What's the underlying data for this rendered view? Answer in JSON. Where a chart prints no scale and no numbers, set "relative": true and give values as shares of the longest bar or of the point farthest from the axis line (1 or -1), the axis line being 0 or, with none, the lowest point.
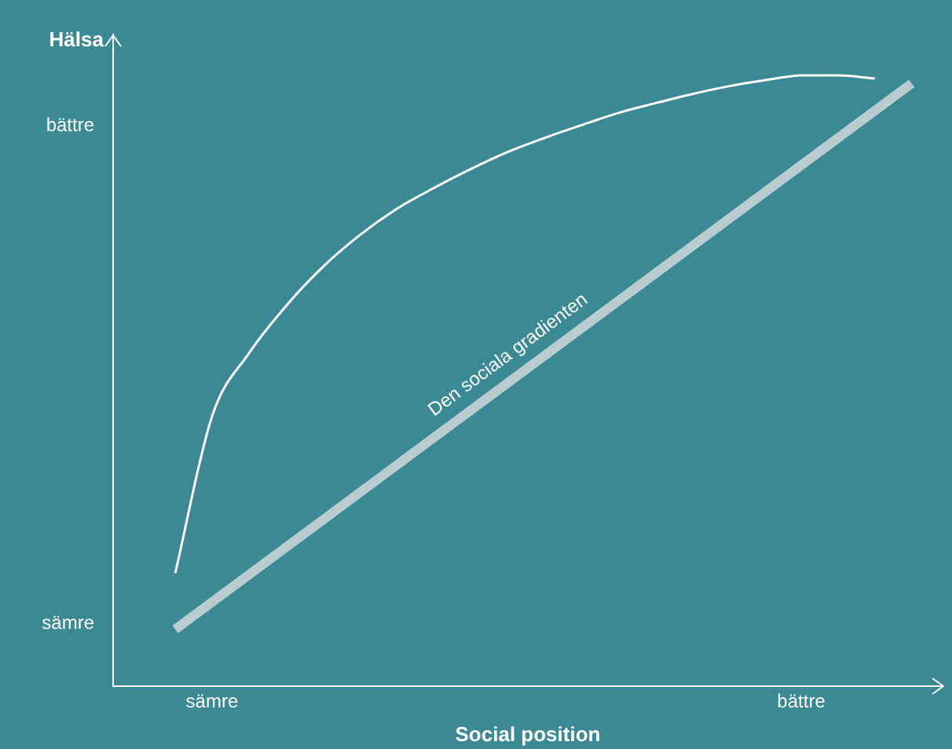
{
  "chart_data": {
    "type": "line",
    "relative": true,
    "xlabel": "Social position",
    "ylabel": "Hälsa",
    "categories": [
      null,
      null,
      "sämre",
      null,
      null,
      null,
      null,
      null,
      null,
      null,
      null,
      null,
      null,
      null,
      null,
      null,
      null,
      null,
      "bättre",
      null,
      null,
      null
    ],
    "series": [
      {
        "color": "#ffffff",
        "values": [
          null,
          0.185,
          0.442,
          0.545,
          0.622,
          0.686,
          0.738,
          0.781,
          0.815,
          0.846,
          0.874,
          0.897,
          0.918,
          0.938,
          0.954,
          0.969,
          0.982,
          0.992,
          1.0,
          1.0,
          0.995,
          null
        ]
      },
      {
        "color": "#b9cdd0",
        "values": [
          null,
          0.093,
          null,
          null,
          null,
          null,
          null,
          null,
          null,
          null,
          null,
          null,
          null,
          null,
          null,
          null,
          null,
          null,
          null,
          null,
          null,
          0.987
        ]
      }
    ],
    "annotations": [
      "sämre",
      "bättre",
      "Den sociala gradienten"
    ],
    "grid": false,
    "legend": false,
    "marker": "none",
    "line_style": "solid"
  }
}
